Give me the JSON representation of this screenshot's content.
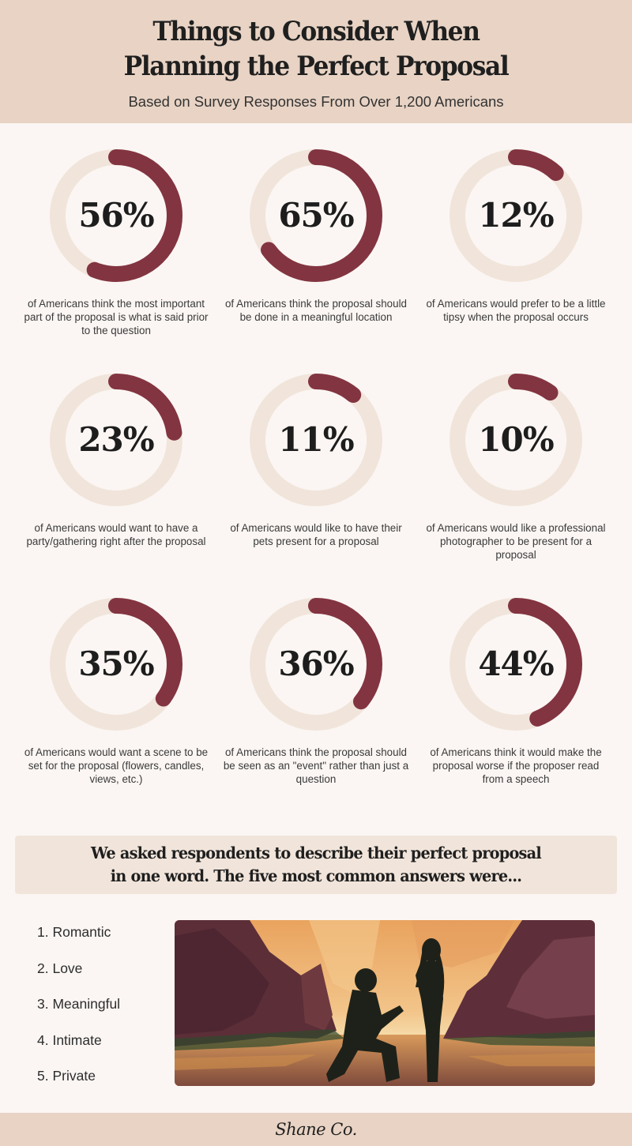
{
  "header": {
    "title_line1": "Things to Consider When",
    "title_line2": "Planning the Perfect Proposal",
    "subtitle": "Based on Survey Responses From Over 1,200 Americans"
  },
  "colors": {
    "header_bg": "#e8d3c4",
    "page_bg": "#fbf6f3",
    "ring_track": "#f1e5db",
    "ring_fill": "#833441",
    "callout_bg": "#f1e5db"
  },
  "stats": [
    {
      "value": 56,
      "label": "56%",
      "desc": "of Americans think the most important part of the proposal is what is said prior to the question"
    },
    {
      "value": 65,
      "label": "65%",
      "desc": "of Americans think the proposal should be done in a meaningful location"
    },
    {
      "value": 12,
      "label": "12%",
      "desc": "of Americans would prefer to be a little tipsy when the proposal occurs"
    },
    {
      "value": 23,
      "label": "23%",
      "desc": "of Americans would want to have a party/gathering right after the proposal"
    },
    {
      "value": 11,
      "label": "11%",
      "desc": "of Americans would like to have their pets present for a proposal"
    },
    {
      "value": 10,
      "label": "10%",
      "desc": "of Americans would like a professional photographer to be present for a proposal"
    },
    {
      "value": 35,
      "label": "35%",
      "desc": "of Americans would want a scene to be set for the proposal (flowers, candles, views, etc.)"
    },
    {
      "value": 36,
      "label": "36%",
      "desc": "of Americans think the proposal should be seen as an \"event\" rather than just a question"
    },
    {
      "value": 44,
      "label": "44%",
      "desc": "of Americans think it would make the proposal worse if the proposer read from a speech"
    }
  ],
  "callout": {
    "line1": "We asked respondents to describe their perfect proposal",
    "line2": "in one word. The five most common answers were..."
  },
  "answers": [
    "1. Romantic",
    "2. Love",
    "3. Meaningful",
    "4. Intimate",
    "5. Private"
  ],
  "illustration": {
    "icon": "proposal-silhouette-canyon-illustration"
  },
  "footer": {
    "logo": "Shane Co."
  },
  "chart_data": {
    "type": "pie",
    "subtype": "donut-progress-rings",
    "title": "Things to Consider When Planning the Perfect Proposal",
    "subtitle": "Based on Survey Responses From Over 1,200 Americans",
    "categories": [
      "Most important part is what is said prior to the question",
      "Proposal should be done in a meaningful location",
      "Prefer to be a little tipsy when the proposal occurs",
      "Want a party/gathering right after the proposal",
      "Like to have their pets present for a proposal",
      "Like a professional photographer present",
      "Want a scene to be set (flowers, candles, views, etc.)",
      "Proposal should be seen as an \"event\" rather than just a question",
      "Worse if the proposer read from a speech"
    ],
    "values": [
      56,
      65,
      12,
      23,
      11,
      10,
      35,
      36,
      44
    ],
    "unit": "%",
    "layout": "3x3 grid",
    "ranked_list": {
      "title": "Five most common one-word descriptions of a perfect proposal",
      "items": [
        "Romantic",
        "Love",
        "Meaningful",
        "Intimate",
        "Private"
      ]
    }
  }
}
